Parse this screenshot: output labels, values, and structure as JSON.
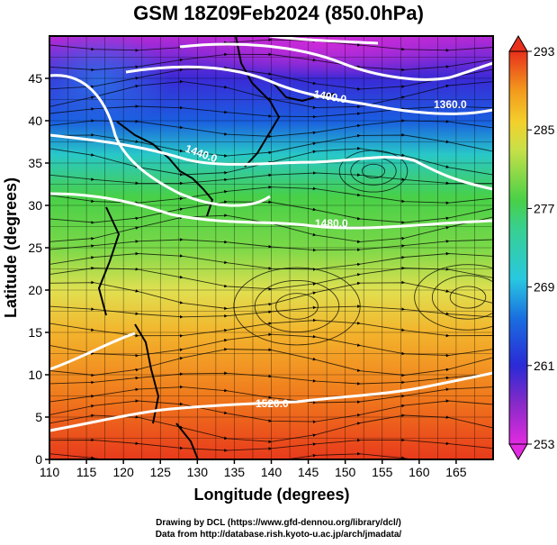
{
  "title": "GSM 18Z09Feb2024 (850.0hPa)",
  "axes": {
    "xlabel": "Longitude (degrees)",
    "ylabel": "Latitude  (degrees)",
    "x_ticks": [
      "110",
      "115",
      "120",
      "125",
      "130",
      "135",
      "140",
      "145",
      "150",
      "155",
      "160",
      "165"
    ],
    "y_ticks": [
      "0",
      "5",
      "10",
      "15",
      "20",
      "25",
      "30",
      "35",
      "40",
      "45"
    ]
  },
  "chart_data": {
    "type": "heatmap",
    "title": "GSM 18Z09Feb2024 (850.0hPa)",
    "xlabel": "Longitude (degrees)",
    "ylabel": "Latitude  (degrees)",
    "xlim": [
      110,
      170
    ],
    "ylim": [
      0,
      50
    ],
    "colorbar": {
      "ticks": [
        "293",
        "285",
        "277",
        "269",
        "261",
        "253"
      ],
      "tick_values": [
        293,
        285,
        277,
        269,
        261,
        253
      ],
      "range": [
        253,
        293
      ]
    },
    "contour_labels": [
      "1360.0",
      "1400.0",
      "1440.0",
      "1480.0",
      "1520.0"
    ],
    "colors": {
      "hot": "#e8301c",
      "orange": "#f39a1c",
      "yellow": "#eee04a",
      "green": "#4cc94a",
      "cyan": "#38c8d8",
      "blue": "#1a36d6",
      "purple": "#8a2ac8",
      "magenta": "#e22ae0",
      "contour": "#ffffff",
      "coast": "#000000"
    }
  },
  "credits": [
    "Drawing by DCL (https://www.gfd-dennou.org/library/dcl/)",
    "Data from http://database.rish.kyoto-u.ac.jp/arch/jmadata/"
  ]
}
